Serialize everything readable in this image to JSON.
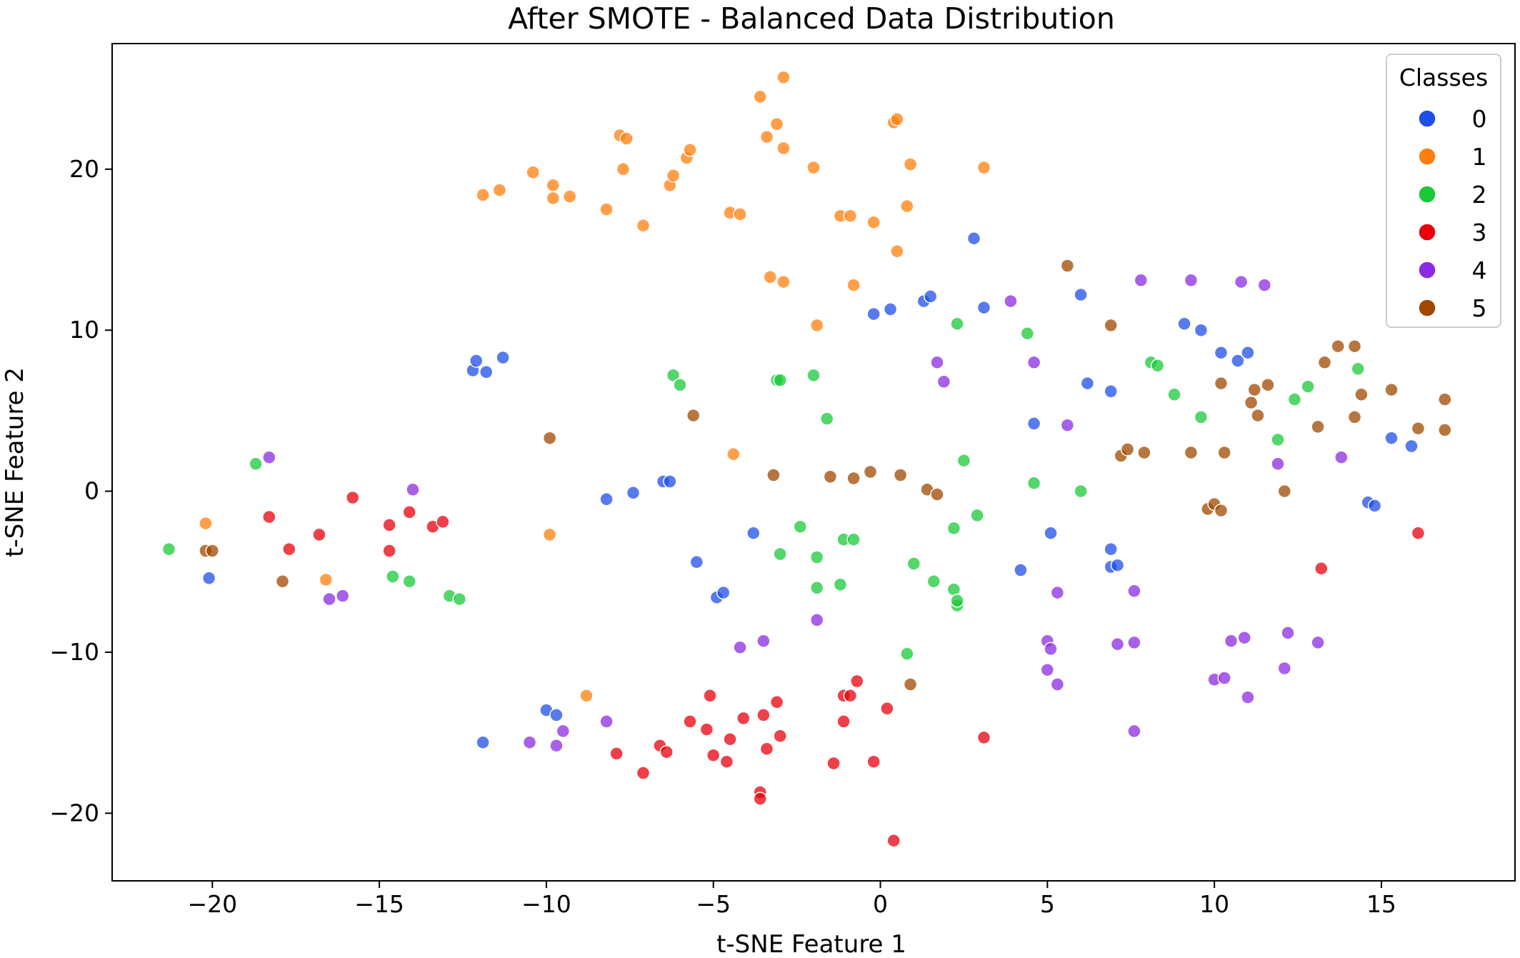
{
  "chart_data": {
    "type": "scatter",
    "title": "After SMOTE - Balanced Data Distribution",
    "xlabel": "t-SNE Feature 1",
    "ylabel": "t-SNE Feature 2",
    "xlim": [
      -23,
      19
    ],
    "ylim": [
      -24.2,
      27.8
    ],
    "xticks": [
      -20,
      -15,
      -10,
      -5,
      0,
      5,
      10,
      15
    ],
    "yticks": [
      -20,
      -10,
      0,
      10,
      20
    ],
    "xtick_labels": [
      "−20",
      "−15",
      "−10",
      "−5",
      "0",
      "5",
      "10",
      "15"
    ],
    "ytick_labels": [
      "−20",
      "−10",
      "0",
      "10",
      "20"
    ],
    "grid": false,
    "legend": {
      "title": "Classes",
      "position": "top-right"
    },
    "series": [
      {
        "name": "0",
        "color": "#1f4fe8",
        "points": [
          [
            -12.2,
            7.5
          ],
          [
            -12.1,
            8.1
          ],
          [
            -11.8,
            7.4
          ],
          [
            -11.3,
            8.3
          ],
          [
            -20.1,
            -5.4
          ],
          [
            -8.2,
            -0.5
          ],
          [
            -7.4,
            -0.1
          ],
          [
            -6.5,
            0.6
          ],
          [
            -6.3,
            0.6
          ],
          [
            -5.5,
            -4.4
          ],
          [
            -4.9,
            -6.6
          ],
          [
            -4.7,
            -6.3
          ],
          [
            -3.8,
            -2.6
          ],
          [
            -10.0,
            -13.6
          ],
          [
            -9.7,
            -13.9
          ],
          [
            -11.9,
            -15.6
          ],
          [
            -0.2,
            11.0
          ],
          [
            0.3,
            11.3
          ],
          [
            1.3,
            11.8
          ],
          [
            1.5,
            12.1
          ],
          [
            2.8,
            15.7
          ],
          [
            3.1,
            11.4
          ],
          [
            4.2,
            -4.9
          ],
          [
            4.6,
            4.2
          ],
          [
            5.1,
            -2.6
          ],
          [
            6.0,
            12.2
          ],
          [
            6.2,
            6.7
          ],
          [
            6.9,
            6.2
          ],
          [
            6.9,
            -3.6
          ],
          [
            6.9,
            -4.7
          ],
          [
            7.1,
            -4.6
          ],
          [
            9.1,
            10.4
          ],
          [
            9.6,
            10.0
          ],
          [
            10.2,
            8.6
          ],
          [
            10.7,
            8.1
          ],
          [
            11.0,
            8.6
          ],
          [
            14.6,
            -0.7
          ],
          [
            14.8,
            -0.9
          ],
          [
            15.3,
            3.3
          ],
          [
            15.9,
            2.8
          ]
        ]
      },
      {
        "name": "1",
        "color": "#ff7f0e",
        "points": [
          [
            -20.2,
            -2.0
          ],
          [
            -16.6,
            -5.5
          ],
          [
            -11.9,
            18.4
          ],
          [
            -11.4,
            18.7
          ],
          [
            -10.4,
            19.8
          ],
          [
            -9.8,
            19.0
          ],
          [
            -9.8,
            18.2
          ],
          [
            -9.3,
            18.3
          ],
          [
            -9.9,
            -2.7
          ],
          [
            -8.8,
            -12.7
          ],
          [
            -8.2,
            17.5
          ],
          [
            -7.8,
            22.1
          ],
          [
            -7.6,
            21.9
          ],
          [
            -7.7,
            20.0
          ],
          [
            -7.1,
            16.5
          ],
          [
            -6.3,
            19.0
          ],
          [
            -6.2,
            19.6
          ],
          [
            -5.8,
            20.7
          ],
          [
            -5.7,
            21.2
          ],
          [
            -4.5,
            17.3
          ],
          [
            -4.2,
            17.2
          ],
          [
            -4.4,
            2.3
          ],
          [
            -3.6,
            24.5
          ],
          [
            -3.4,
            22.0
          ],
          [
            -3.3,
            13.3
          ],
          [
            -3.1,
            22.8
          ],
          [
            -2.9,
            25.7
          ],
          [
            -2.9,
            21.3
          ],
          [
            -2.9,
            13.0
          ],
          [
            -2.0,
            20.1
          ],
          [
            -1.9,
            10.3
          ],
          [
            -1.2,
            17.1
          ],
          [
            -0.9,
            17.1
          ],
          [
            -0.8,
            12.8
          ],
          [
            -0.2,
            16.7
          ],
          [
            0.4,
            22.9
          ],
          [
            0.5,
            23.1
          ],
          [
            0.5,
            14.9
          ],
          [
            0.8,
            17.7
          ],
          [
            0.9,
            20.3
          ],
          [
            3.1,
            20.1
          ]
        ]
      },
      {
        "name": "2",
        "color": "#1ac938",
        "points": [
          [
            -21.3,
            -3.6
          ],
          [
            -18.7,
            1.7
          ],
          [
            -14.6,
            -5.3
          ],
          [
            -14.1,
            -5.6
          ],
          [
            -12.9,
            -6.5
          ],
          [
            -12.6,
            -6.7
          ],
          [
            -6.2,
            7.2
          ],
          [
            -6.0,
            6.6
          ],
          [
            -3.1,
            6.9
          ],
          [
            -3.0,
            6.9
          ],
          [
            -3.0,
            -3.9
          ],
          [
            -2.4,
            -2.2
          ],
          [
            -2.0,
            7.2
          ],
          [
            -1.9,
            -4.1
          ],
          [
            -1.9,
            -6.0
          ],
          [
            -1.6,
            4.5
          ],
          [
            -1.1,
            -3.0
          ],
          [
            -1.2,
            -5.8
          ],
          [
            -0.8,
            -3.0
          ],
          [
            0.8,
            -10.1
          ],
          [
            1.0,
            -4.5
          ],
          [
            1.6,
            -5.6
          ],
          [
            2.2,
            -2.3
          ],
          [
            2.2,
            -6.1
          ],
          [
            2.3,
            -7.1
          ],
          [
            2.3,
            -6.8
          ],
          [
            2.3,
            10.4
          ],
          [
            2.5,
            1.9
          ],
          [
            2.9,
            -1.5
          ],
          [
            4.4,
            9.8
          ],
          [
            4.6,
            0.5
          ],
          [
            6.0,
            -0.0
          ],
          [
            8.1,
            8.0
          ],
          [
            8.3,
            7.8
          ],
          [
            8.8,
            6.0
          ],
          [
            9.6,
            4.6
          ],
          [
            11.9,
            3.2
          ],
          [
            12.4,
            5.7
          ],
          [
            12.8,
            6.5
          ],
          [
            14.3,
            7.6
          ]
        ]
      },
      {
        "name": "3",
        "color": "#e8000b",
        "points": [
          [
            -18.3,
            -1.6
          ],
          [
            -17.7,
            -3.6
          ],
          [
            -16.8,
            -2.7
          ],
          [
            -15.8,
            -0.4
          ],
          [
            -14.7,
            -2.1
          ],
          [
            -14.7,
            -3.7
          ],
          [
            -14.1,
            -1.3
          ],
          [
            -13.4,
            -2.2
          ],
          [
            -13.1,
            -1.9
          ],
          [
            -7.9,
            -16.3
          ],
          [
            -7.1,
            -17.5
          ],
          [
            -6.6,
            -15.8
          ],
          [
            -6.4,
            -16.2
          ],
          [
            -5.7,
            -14.3
          ],
          [
            -5.2,
            -14.8
          ],
          [
            -5.1,
            -12.7
          ],
          [
            -5.0,
            -16.4
          ],
          [
            -4.6,
            -16.8
          ],
          [
            -4.5,
            -15.4
          ],
          [
            -4.1,
            -14.1
          ],
          [
            -3.6,
            -18.7
          ],
          [
            -3.6,
            -19.1
          ],
          [
            -3.5,
            -13.9
          ],
          [
            -3.4,
            -16.0
          ],
          [
            -3.1,
            -13.1
          ],
          [
            -3.0,
            -15.2
          ],
          [
            -1.4,
            -16.9
          ],
          [
            -1.1,
            -14.3
          ],
          [
            -1.1,
            -12.7
          ],
          [
            -0.9,
            -12.7
          ],
          [
            -0.7,
            -11.8
          ],
          [
            -0.2,
            -16.8
          ],
          [
            0.2,
            -13.5
          ],
          [
            0.4,
            -21.7
          ],
          [
            3.1,
            -15.3
          ],
          [
            13.2,
            -4.8
          ],
          [
            16.1,
            -2.6
          ]
        ]
      },
      {
        "name": "4",
        "color": "#8b2be2",
        "points": [
          [
            -18.3,
            2.1
          ],
          [
            -16.5,
            -6.7
          ],
          [
            -16.1,
            -6.5
          ],
          [
            -14.0,
            0.1
          ],
          [
            -10.5,
            -15.6
          ],
          [
            -9.7,
            -15.8
          ],
          [
            -9.5,
            -14.9
          ],
          [
            -8.2,
            -14.3
          ],
          [
            -4.2,
            -9.7
          ],
          [
            -3.5,
            -9.3
          ],
          [
            -1.9,
            -8.0
          ],
          [
            1.7,
            8.0
          ],
          [
            1.9,
            6.8
          ],
          [
            3.9,
            11.8
          ],
          [
            4.6,
            8.0
          ],
          [
            5.0,
            -9.3
          ],
          [
            5.0,
            -11.1
          ],
          [
            5.1,
            -9.8
          ],
          [
            5.3,
            -6.3
          ],
          [
            5.3,
            -12.0
          ],
          [
            5.6,
            4.1
          ],
          [
            7.1,
            -9.5
          ],
          [
            7.6,
            -6.2
          ],
          [
            7.6,
            -9.4
          ],
          [
            7.6,
            -14.9
          ],
          [
            7.8,
            13.1
          ],
          [
            9.3,
            13.1
          ],
          [
            10.0,
            -11.7
          ],
          [
            10.3,
            -11.6
          ],
          [
            10.5,
            -9.3
          ],
          [
            10.8,
            13.0
          ],
          [
            10.9,
            -9.1
          ],
          [
            11.0,
            -12.8
          ],
          [
            11.5,
            12.8
          ],
          [
            11.9,
            1.7
          ],
          [
            12.1,
            -11.0
          ],
          [
            12.2,
            -8.8
          ],
          [
            13.1,
            -9.4
          ],
          [
            13.8,
            2.1
          ]
        ]
      },
      {
        "name": "5",
        "color": "#9f4800",
        "points": [
          [
            -20.2,
            -3.7
          ],
          [
            -20.0,
            -3.7
          ],
          [
            -17.9,
            -5.6
          ],
          [
            -9.9,
            3.3
          ],
          [
            -5.6,
            4.7
          ],
          [
            -3.2,
            1.0
          ],
          [
            -1.5,
            0.9
          ],
          [
            -0.8,
            0.8
          ],
          [
            -0.3,
            1.2
          ],
          [
            0.6,
            1.0
          ],
          [
            0.9,
            -12.0
          ],
          [
            1.4,
            0.1
          ],
          [
            1.7,
            -0.2
          ],
          [
            5.6,
            14.0
          ],
          [
            6.9,
            10.3
          ],
          [
            7.2,
            2.2
          ],
          [
            7.4,
            2.6
          ],
          [
            7.9,
            2.4
          ],
          [
            9.3,
            2.4
          ],
          [
            9.8,
            -1.1
          ],
          [
            10.0,
            -0.8
          ],
          [
            10.2,
            -1.2
          ],
          [
            10.2,
            6.7
          ],
          [
            10.3,
            2.4
          ],
          [
            11.1,
            5.5
          ],
          [
            11.2,
            6.3
          ],
          [
            11.3,
            4.7
          ],
          [
            11.6,
            6.6
          ],
          [
            12.1,
            -0.0
          ],
          [
            13.1,
            4.0
          ],
          [
            13.3,
            8.0
          ],
          [
            13.7,
            9.0
          ],
          [
            14.2,
            9.0
          ],
          [
            14.2,
            4.6
          ],
          [
            14.4,
            6.0
          ],
          [
            15.3,
            6.3
          ],
          [
            16.1,
            3.9
          ],
          [
            16.9,
            5.7
          ],
          [
            16.9,
            3.8
          ]
        ]
      }
    ]
  }
}
